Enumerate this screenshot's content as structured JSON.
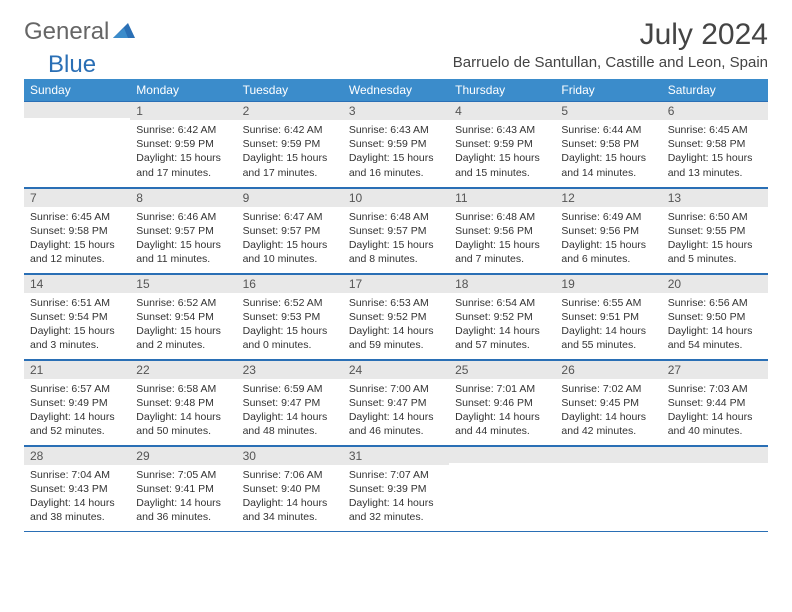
{
  "logo": {
    "part1": "General",
    "part2": "Blue"
  },
  "title": "July 2024",
  "subtitle": "Barruelo de Santullan, Castille and Leon, Spain",
  "colors": {
    "header_bg": "#3b8ccb",
    "header_text": "#ffffff",
    "daynum_bg": "#e8e8e8",
    "border": "#2a6fb5",
    "text": "#333333",
    "title_text": "#444444"
  },
  "weekdays": [
    "Sunday",
    "Monday",
    "Tuesday",
    "Wednesday",
    "Thursday",
    "Friday",
    "Saturday"
  ],
  "weeks": [
    [
      {
        "day": "",
        "lines": []
      },
      {
        "day": "1",
        "lines": [
          "Sunrise: 6:42 AM",
          "Sunset: 9:59 PM",
          "Daylight: 15 hours and 17 minutes."
        ]
      },
      {
        "day": "2",
        "lines": [
          "Sunrise: 6:42 AM",
          "Sunset: 9:59 PM",
          "Daylight: 15 hours and 17 minutes."
        ]
      },
      {
        "day": "3",
        "lines": [
          "Sunrise: 6:43 AM",
          "Sunset: 9:59 PM",
          "Daylight: 15 hours and 16 minutes."
        ]
      },
      {
        "day": "4",
        "lines": [
          "Sunrise: 6:43 AM",
          "Sunset: 9:59 PM",
          "Daylight: 15 hours and 15 minutes."
        ]
      },
      {
        "day": "5",
        "lines": [
          "Sunrise: 6:44 AM",
          "Sunset: 9:58 PM",
          "Daylight: 15 hours and 14 minutes."
        ]
      },
      {
        "day": "6",
        "lines": [
          "Sunrise: 6:45 AM",
          "Sunset: 9:58 PM",
          "Daylight: 15 hours and 13 minutes."
        ]
      }
    ],
    [
      {
        "day": "7",
        "lines": [
          "Sunrise: 6:45 AM",
          "Sunset: 9:58 PM",
          "Daylight: 15 hours and 12 minutes."
        ]
      },
      {
        "day": "8",
        "lines": [
          "Sunrise: 6:46 AM",
          "Sunset: 9:57 PM",
          "Daylight: 15 hours and 11 minutes."
        ]
      },
      {
        "day": "9",
        "lines": [
          "Sunrise: 6:47 AM",
          "Sunset: 9:57 PM",
          "Daylight: 15 hours and 10 minutes."
        ]
      },
      {
        "day": "10",
        "lines": [
          "Sunrise: 6:48 AM",
          "Sunset: 9:57 PM",
          "Daylight: 15 hours and 8 minutes."
        ]
      },
      {
        "day": "11",
        "lines": [
          "Sunrise: 6:48 AM",
          "Sunset: 9:56 PM",
          "Daylight: 15 hours and 7 minutes."
        ]
      },
      {
        "day": "12",
        "lines": [
          "Sunrise: 6:49 AM",
          "Sunset: 9:56 PM",
          "Daylight: 15 hours and 6 minutes."
        ]
      },
      {
        "day": "13",
        "lines": [
          "Sunrise: 6:50 AM",
          "Sunset: 9:55 PM",
          "Daylight: 15 hours and 5 minutes."
        ]
      }
    ],
    [
      {
        "day": "14",
        "lines": [
          "Sunrise: 6:51 AM",
          "Sunset: 9:54 PM",
          "Daylight: 15 hours and 3 minutes."
        ]
      },
      {
        "day": "15",
        "lines": [
          "Sunrise: 6:52 AM",
          "Sunset: 9:54 PM",
          "Daylight: 15 hours and 2 minutes."
        ]
      },
      {
        "day": "16",
        "lines": [
          "Sunrise: 6:52 AM",
          "Sunset: 9:53 PM",
          "Daylight: 15 hours and 0 minutes."
        ]
      },
      {
        "day": "17",
        "lines": [
          "Sunrise: 6:53 AM",
          "Sunset: 9:52 PM",
          "Daylight: 14 hours and 59 minutes."
        ]
      },
      {
        "day": "18",
        "lines": [
          "Sunrise: 6:54 AM",
          "Sunset: 9:52 PM",
          "Daylight: 14 hours and 57 minutes."
        ]
      },
      {
        "day": "19",
        "lines": [
          "Sunrise: 6:55 AM",
          "Sunset: 9:51 PM",
          "Daylight: 14 hours and 55 minutes."
        ]
      },
      {
        "day": "20",
        "lines": [
          "Sunrise: 6:56 AM",
          "Sunset: 9:50 PM",
          "Daylight: 14 hours and 54 minutes."
        ]
      }
    ],
    [
      {
        "day": "21",
        "lines": [
          "Sunrise: 6:57 AM",
          "Sunset: 9:49 PM",
          "Daylight: 14 hours and 52 minutes."
        ]
      },
      {
        "day": "22",
        "lines": [
          "Sunrise: 6:58 AM",
          "Sunset: 9:48 PM",
          "Daylight: 14 hours and 50 minutes."
        ]
      },
      {
        "day": "23",
        "lines": [
          "Sunrise: 6:59 AM",
          "Sunset: 9:47 PM",
          "Daylight: 14 hours and 48 minutes."
        ]
      },
      {
        "day": "24",
        "lines": [
          "Sunrise: 7:00 AM",
          "Sunset: 9:47 PM",
          "Daylight: 14 hours and 46 minutes."
        ]
      },
      {
        "day": "25",
        "lines": [
          "Sunrise: 7:01 AM",
          "Sunset: 9:46 PM",
          "Daylight: 14 hours and 44 minutes."
        ]
      },
      {
        "day": "26",
        "lines": [
          "Sunrise: 7:02 AM",
          "Sunset: 9:45 PM",
          "Daylight: 14 hours and 42 minutes."
        ]
      },
      {
        "day": "27",
        "lines": [
          "Sunrise: 7:03 AM",
          "Sunset: 9:44 PM",
          "Daylight: 14 hours and 40 minutes."
        ]
      }
    ],
    [
      {
        "day": "28",
        "lines": [
          "Sunrise: 7:04 AM",
          "Sunset: 9:43 PM",
          "Daylight: 14 hours and 38 minutes."
        ]
      },
      {
        "day": "29",
        "lines": [
          "Sunrise: 7:05 AM",
          "Sunset: 9:41 PM",
          "Daylight: 14 hours and 36 minutes."
        ]
      },
      {
        "day": "30",
        "lines": [
          "Sunrise: 7:06 AM",
          "Sunset: 9:40 PM",
          "Daylight: 14 hours and 34 minutes."
        ]
      },
      {
        "day": "31",
        "lines": [
          "Sunrise: 7:07 AM",
          "Sunset: 9:39 PM",
          "Daylight: 14 hours and 32 minutes."
        ]
      },
      {
        "day": "",
        "lines": []
      },
      {
        "day": "",
        "lines": []
      },
      {
        "day": "",
        "lines": []
      }
    ]
  ]
}
